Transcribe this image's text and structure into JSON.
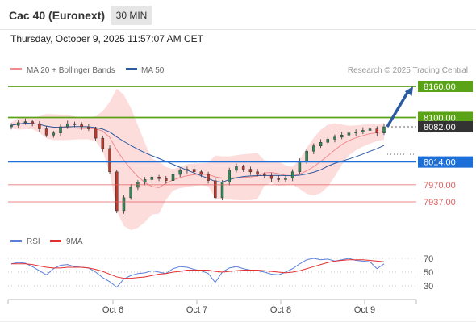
{
  "header": {
    "title": "Cac 40 (Euronext)",
    "timeframe": "30 MIN",
    "datetime": "Thursday, October 9, 2025 11:57:07 AM CET"
  },
  "legend": {
    "ma20_label": "MA 20 + Bollinger Bands",
    "ma50_label": "MA 50",
    "credit": "Research © 2025 Trading Central",
    "rsi_label": "RSI",
    "ma9_label": "9MA"
  },
  "colors": {
    "bollinger_fill": "#fcd3d3",
    "ma20": "#f28b8b",
    "ma50": "#2c5aa0",
    "bull": "#2e8b57",
    "bear": "#c0392b",
    "target": "#5aa317",
    "support": "#1c6ed8",
    "support2": "#e06060",
    "rsi": "#5b7fdb",
    "rsi_ma": "#e53030",
    "arrow": "#2c5aa0"
  },
  "chart_data": [
    {
      "type": "candlestick",
      "title": "",
      "x_ticks": [
        "Oct 6",
        "Oct 7",
        "Oct 8",
        "Oct 9"
      ],
      "price_levels": [
        {
          "value": 8160.0,
          "label": "8160.00",
          "kind": "target"
        },
        {
          "value": 8100.0,
          "label": "8100.00",
          "kind": "target"
        },
        {
          "value": 8082.0,
          "label": "8082.00",
          "kind": "current"
        },
        {
          "value": 8014.0,
          "label": "8014.00",
          "kind": "pivot"
        },
        {
          "value": 7970.0,
          "label": "7970.00",
          "kind": "support"
        },
        {
          "value": 7937.0,
          "label": "7937.00",
          "kind": "support"
        }
      ],
      "price_path": [
        [
          "Oct 3",
          8085
        ],
        [
          "Oct 3",
          8090
        ],
        [
          "Oct 3",
          8092
        ],
        [
          "Oct 3",
          8088
        ],
        [
          "Oct 3",
          8078
        ],
        [
          "Oct 3",
          8066
        ],
        [
          "Oct 3",
          8070
        ],
        [
          "Oct 3",
          8082
        ],
        [
          "Oct 3",
          8088
        ],
        [
          "Oct 3",
          8086
        ],
        [
          "Oct 3",
          8082
        ],
        [
          "Oct 3",
          8078
        ],
        [
          "Oct 6",
          8060
        ],
        [
          "Oct 6",
          8040
        ],
        [
          "Oct 6",
          7995
        ],
        [
          "Oct 6",
          7920
        ],
        [
          "Oct 6",
          7945
        ],
        [
          "Oct 6",
          7965
        ],
        [
          "Oct 6",
          7975
        ],
        [
          "Oct 6",
          7980
        ],
        [
          "Oct 6",
          7985
        ],
        [
          "Oct 6",
          7982
        ],
        [
          "Oct 6",
          7978
        ],
        [
          "Oct 6",
          7990
        ],
        [
          "Oct 7",
          7998
        ],
        [
          "Oct 7",
          8000
        ],
        [
          "Oct 7",
          7995
        ],
        [
          "Oct 7",
          7990
        ],
        [
          "Oct 7",
          7978
        ],
        [
          "Oct 7",
          7945
        ],
        [
          "Oct 7",
          7975
        ],
        [
          "Oct 7",
          7998
        ],
        [
          "Oct 7",
          8005
        ],
        [
          "Oct 7",
          8000
        ],
        [
          "Oct 7",
          7995
        ],
        [
          "Oct 7",
          7990
        ],
        [
          "Oct 8",
          7988
        ],
        [
          "Oct 8",
          7982
        ],
        [
          "Oct 8",
          7980
        ],
        [
          "Oct 8",
          7983
        ],
        [
          "Oct 8",
          7995
        ],
        [
          "Oct 8",
          8015
        ],
        [
          "Oct 8",
          8035
        ],
        [
          "Oct 8",
          8045
        ],
        [
          "Oct 8",
          8052
        ],
        [
          "Oct 8",
          8058
        ],
        [
          "Oct 8",
          8062
        ],
        [
          "Oct 8",
          8066
        ],
        [
          "Oct 9",
          8070
        ],
        [
          "Oct 9",
          8072
        ],
        [
          "Oct 9",
          8075
        ],
        [
          "Oct 9",
          8078
        ],
        [
          "Oct 9",
          8070
        ],
        [
          "Oct 9",
          8082
        ]
      ],
      "projection": {
        "from": 8082,
        "to": 8160
      },
      "indicators": [
        "MA 20 + Bollinger Bands",
        "MA 50"
      ]
    },
    {
      "type": "line",
      "title": "RSI",
      "yticks": [
        30,
        50,
        70
      ],
      "ylim": [
        20,
        80
      ],
      "series": [
        {
          "name": "RSI",
          "values": [
            62,
            64,
            63,
            58,
            52,
            46,
            55,
            60,
            61,
            58,
            57,
            56,
            50,
            42,
            36,
            28,
            40,
            45,
            48,
            49,
            52,
            50,
            48,
            55,
            58,
            57,
            54,
            52,
            48,
            35,
            50,
            56,
            58,
            55,
            53,
            52,
            50,
            47,
            46,
            50,
            55,
            62,
            68,
            70,
            68,
            69,
            66,
            68,
            70,
            67,
            66,
            65,
            55,
            62
          ]
        },
        {
          "name": "9MA",
          "values": [
            62,
            62,
            62,
            61,
            59,
            57,
            56,
            56,
            57,
            57,
            57,
            56,
            54,
            51,
            47,
            43,
            41,
            41,
            42,
            43,
            45,
            47,
            48,
            50,
            51,
            53,
            53,
            53,
            53,
            51,
            50,
            51,
            52,
            53,
            53,
            53,
            52,
            51,
            50,
            49,
            50,
            52,
            55,
            58,
            61,
            64,
            66,
            67,
            68,
            68,
            68,
            67,
            66,
            65
          ]
        }
      ]
    }
  ]
}
